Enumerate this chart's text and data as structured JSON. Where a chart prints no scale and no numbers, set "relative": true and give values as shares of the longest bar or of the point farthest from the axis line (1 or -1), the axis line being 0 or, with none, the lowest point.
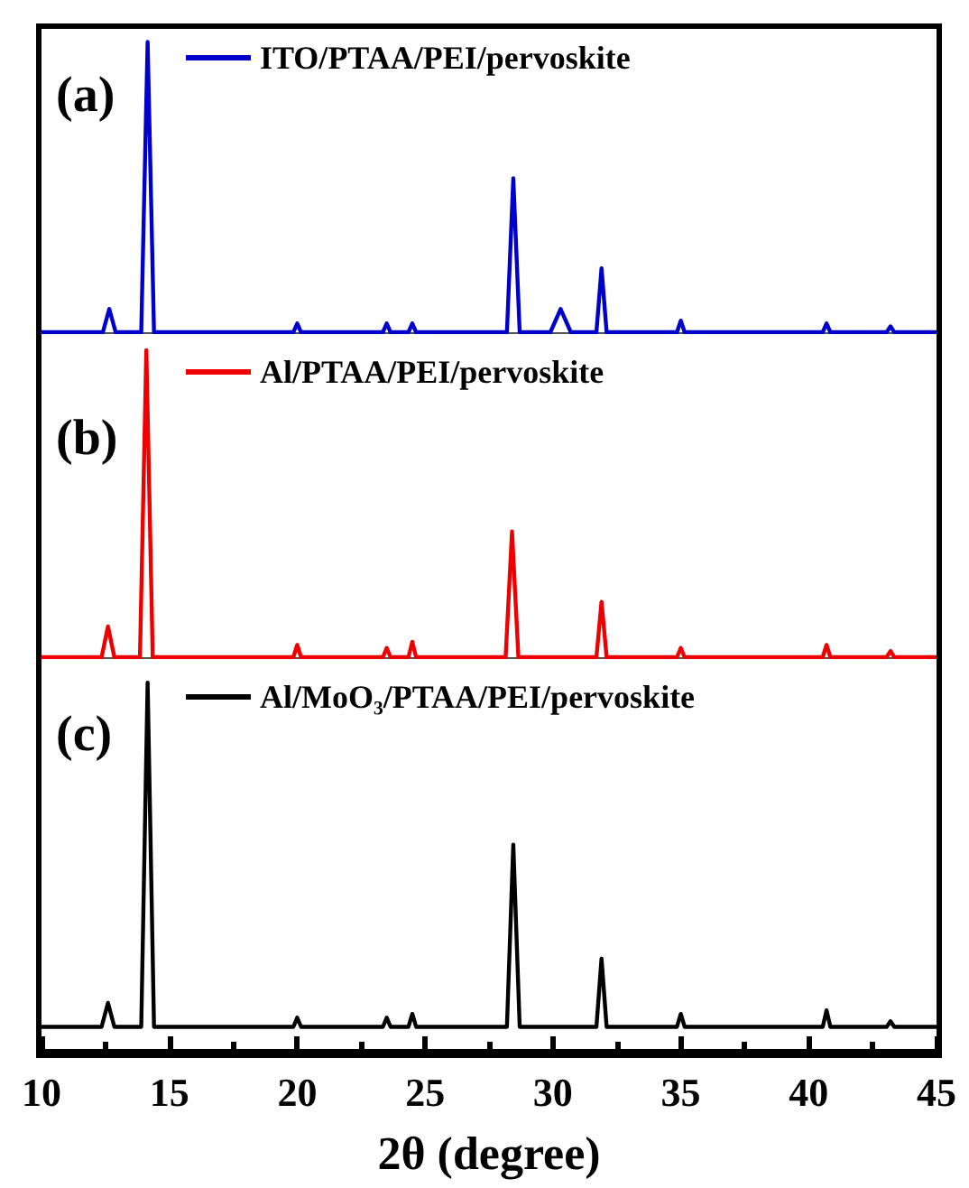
{
  "chart_data": [
    {
      "type": "line",
      "title": "(a)",
      "relative": true,
      "legend": "top",
      "xlim": [
        10,
        45
      ],
      "tick_labels": false,
      "x": [
        10,
        12.4,
        12.65,
        12.9,
        13.9,
        14.15,
        14.4,
        19.85,
        20.0,
        20.15,
        23.35,
        23.5,
        23.65,
        24.35,
        24.5,
        24.65,
        28.2,
        28.45,
        28.7,
        29.9,
        30.3,
        30.7,
        31.7,
        31.9,
        32.1,
        34.85,
        35.0,
        35.15,
        40.55,
        40.7,
        40.85,
        43.05,
        43.2,
        43.35,
        45
      ],
      "series": [
        {
          "name": "ITO/PTAA/PEI/pervoskite",
          "color": "#0000cc",
          "values": [
            0,
            0,
            0.08,
            0,
            0,
            1,
            0,
            0,
            0.03,
            0,
            0,
            0.03,
            0,
            0,
            0.03,
            0,
            0,
            0.53,
            0,
            0,
            0.08,
            0,
            0,
            0.22,
            0,
            0,
            0.04,
            0,
            0,
            0.03,
            0,
            0,
            0.02,
            0,
            0
          ]
        }
      ]
    },
    {
      "type": "line",
      "title": "(b)",
      "relative": true,
      "legend": "top",
      "xlim": [
        10,
        45
      ],
      "tick_labels": false,
      "x": [
        10,
        12.35,
        12.6,
        12.85,
        13.85,
        14.1,
        14.35,
        19.85,
        20.0,
        20.15,
        23.35,
        23.5,
        23.65,
        24.35,
        24.5,
        24.65,
        28.15,
        28.4,
        28.65,
        31.7,
        31.9,
        32.1,
        34.85,
        35.0,
        35.15,
        40.55,
        40.7,
        40.85,
        43.05,
        43.2,
        43.35,
        45
      ],
      "series": [
        {
          "name": "Al/PTAA/PEI/pervoskite",
          "color": "#ee0000",
          "values": [
            0,
            0,
            0.1,
            0,
            0,
            1,
            0,
            0,
            0.04,
            0,
            0,
            0.03,
            0,
            0,
            0.05,
            0,
            0,
            0.41,
            0,
            0,
            0.18,
            0,
            0,
            0.03,
            0,
            0,
            0.04,
            0,
            0,
            0.02,
            0,
            0
          ]
        }
      ]
    },
    {
      "type": "line",
      "title": "(c)",
      "relative": true,
      "legend": "top",
      "xlim": [
        10,
        45
      ],
      "tick_labels": "x",
      "xlabel": "2θ (degree)",
      "xticks": [
        10,
        {
          "value": 12.5,
          "label": null
        },
        15,
        {
          "value": 17.5,
          "label": null
        },
        20,
        {
          "value": 22.5,
          "label": null
        },
        25,
        {
          "value": 27.5,
          "label": null
        },
        30,
        {
          "value": 32.5,
          "label": null
        },
        35,
        {
          "value": 37.5,
          "label": null
        },
        40,
        {
          "value": 42.5,
          "label": null
        },
        45
      ],
      "x": [
        10,
        12.35,
        12.6,
        12.85,
        13.9,
        14.15,
        14.4,
        19.85,
        20.0,
        20.15,
        23.35,
        23.5,
        23.65,
        24.35,
        24.5,
        24.65,
        28.2,
        28.45,
        28.7,
        31.7,
        31.9,
        32.1,
        34.85,
        35.0,
        35.15,
        40.55,
        40.7,
        40.85,
        43.05,
        43.2,
        43.35,
        45
      ],
      "series": [
        {
          "name": "Al/MoO₃/PTAA/PEI/pervoskite",
          "color": "#000000",
          "values": [
            0.065,
            0.065,
            0.13,
            0.065,
            0.065,
            1,
            0.065,
            0.065,
            0.09,
            0.065,
            0.065,
            0.09,
            0.065,
            0.065,
            0.1,
            0.065,
            0.065,
            0.56,
            0.065,
            0.065,
            0.25,
            0.065,
            0.065,
            0.1,
            0.065,
            0.065,
            0.11,
            0.065,
            0.065,
            0.08,
            0.065,
            0.065
          ]
        }
      ]
    }
  ]
}
